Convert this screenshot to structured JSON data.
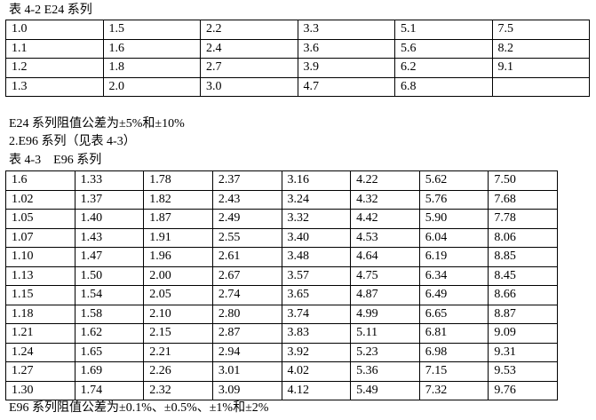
{
  "caption1": "表 4-2 E24 系列",
  "table1": [
    [
      "1.0",
      "1.5",
      "2.2",
      "3.3",
      "5.1",
      "7.5"
    ],
    [
      "1.1",
      "1.6",
      "2.4",
      "3.6",
      "5.6",
      "8.2"
    ],
    [
      "1.2",
      "1.8",
      "2.7",
      "3.9",
      "6.2",
      "9.1"
    ],
    [
      "1.3",
      "2.0",
      "3.0",
      "4.7",
      "6.8",
      ""
    ]
  ],
  "note1": "E24 系列阻值公差为±5%和±10%",
  "heading2": "2.E96 系列（见表 4-3）",
  "caption2": "表 4-3　E96 系列",
  "table2": [
    [
      "1.6",
      "1.33",
      "1.78",
      "2.37",
      "3.16",
      "4.22",
      "5.62",
      "7.50"
    ],
    [
      "1.02",
      "1.37",
      "1.82",
      "2.43",
      "3.24",
      "4.32",
      "5.76",
      "7.68"
    ],
    [
      "1.05",
      "1.40",
      "1.87",
      "2.49",
      "3.32",
      "4.42",
      "5.90",
      "7.78"
    ],
    [
      "1.07",
      "1.43",
      "1.91",
      "2.55",
      "3.40",
      "4.53",
      "6.04",
      "8.06"
    ],
    [
      "1.10",
      "1.47",
      "1.96",
      "2.61",
      "3.48",
      "4.64",
      "6.19",
      "8.85"
    ],
    [
      "1.13",
      "1.50",
      "2.00",
      "2.67",
      "3.57",
      "4.75",
      "6.34",
      "8.45"
    ],
    [
      "1.15",
      "1.54",
      "2.05",
      "2.74",
      "3.65",
      "4.87",
      "6.49",
      "8.66"
    ],
    [
      "1.18",
      "1.58",
      "2.10",
      "2.80",
      "3.74",
      "4.99",
      "6.65",
      "8.87"
    ],
    [
      "1.21",
      "1.62",
      "2.15",
      "2.87",
      "3.83",
      "5.11",
      "6.81",
      "9.09"
    ],
    [
      "1.24",
      "1.65",
      "2.21",
      "2.94",
      "3.92",
      "5.23",
      "6.98",
      "9.31"
    ],
    [
      "1.27",
      "1.69",
      "2.26",
      "3.01",
      "4.02",
      "5.36",
      "7.15",
      "9.53"
    ],
    [
      "1.30",
      "1.74",
      "2.32",
      "3.09",
      "4.12",
      "5.49",
      "7.32",
      "9.76"
    ]
  ],
  "note2": "E96 系列阻值公差为±0.1%、±0.5%、±1%和±2%"
}
